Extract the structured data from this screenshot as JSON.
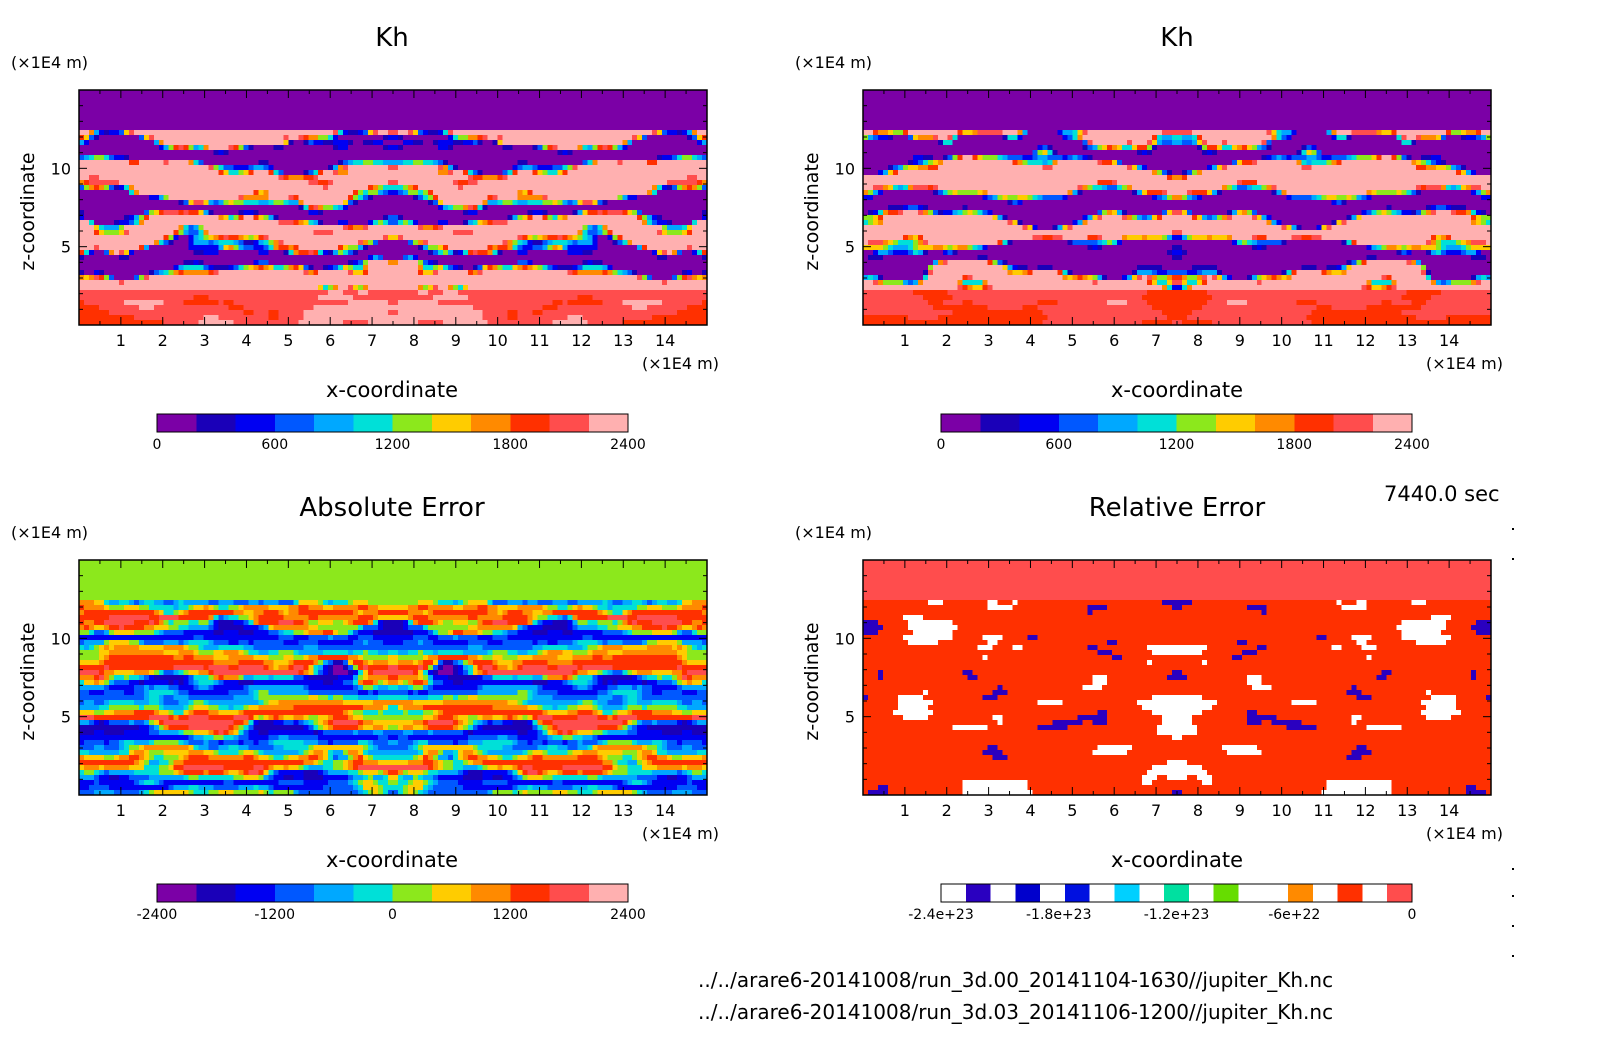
{
  "colors": {
    "kh_levels": [
      "#7b00a6",
      "#1a00b8",
      "#0000f2",
      "#0058ff",
      "#00a8ff",
      "#00e0d8",
      "#8ce81c",
      "#ffcc00",
      "#ff8a00",
      "#ff3000",
      "#ff4d4d",
      "#ffb0b0"
    ],
    "abs_levels": [
      "#7b00a6",
      "#1a00b8",
      "#0000f2",
      "#0058ff",
      "#00a8ff",
      "#00e0d8",
      "#8ce81c",
      "#ffcc00",
      "#ff8a00",
      "#ff3000",
      "#ff4d4d",
      "#ffb0b0"
    ],
    "rel_levels": [
      "#ffffff",
      "#2a00c0",
      "#ffffff",
      "#0000cc",
      "#ffffff",
      "#0010e0",
      "#ffffff",
      "#00d0ff",
      "#ffffff",
      "#00e0a0",
      "#ffffff",
      "#66dd00",
      "#ffffff",
      "#ffffff",
      "#ff8a00",
      "#ffffff",
      "#ff3000",
      "#ffffff",
      "#ff4d4d"
    ]
  },
  "footer": {
    "time_label": "7440.0 sec",
    "file_1": "../../arare6-20141008/run_3d.00_20141104-1630//jupiter_Kh.nc",
    "file_2": "../../arare6-20141008/run_3d.03_20141106-1200//jupiter_Kh.nc"
  },
  "chart_data": [
    {
      "type": "heatmap",
      "title": "Kh",
      "xlabel": "x-coordinate",
      "ylabel": "z-coordinate",
      "x_unit": "(×1E4 m)",
      "y_unit": "(×1E4 m)",
      "x_ticks": [
        "1",
        "2",
        "3",
        "4",
        "5",
        "6",
        "7",
        "8",
        "9",
        "10",
        "11",
        "12",
        "13",
        "14"
      ],
      "y_ticks": [
        "5",
        "10"
      ],
      "xlim": [
        0,
        15
      ],
      "ylim": [
        0,
        15
      ],
      "colorbar": {
        "min": 0,
        "max": 2400,
        "step": 200,
        "labels": [
          "0",
          "600",
          "1200",
          "1800",
          "2400"
        ]
      }
    },
    {
      "type": "heatmap",
      "title": "Kh",
      "xlabel": "x-coordinate",
      "ylabel": "z-coordinate",
      "x_unit": "(×1E4 m)",
      "y_unit": "(×1E4 m)",
      "x_ticks": [
        "1",
        "2",
        "3",
        "4",
        "5",
        "6",
        "7",
        "8",
        "9",
        "10",
        "11",
        "12",
        "13",
        "14"
      ],
      "y_ticks": [
        "5",
        "10"
      ],
      "xlim": [
        0,
        15
      ],
      "ylim": [
        0,
        15
      ],
      "colorbar": {
        "min": 0,
        "max": 2400,
        "step": 200,
        "labels": [
          "0",
          "600",
          "1200",
          "1800",
          "2400"
        ]
      }
    },
    {
      "type": "heatmap",
      "title": "Absolute Error",
      "xlabel": "x-coordinate",
      "ylabel": "z-coordinate",
      "x_unit": "(×1E4 m)",
      "y_unit": "(×1E4 m)",
      "x_ticks": [
        "1",
        "2",
        "3",
        "4",
        "5",
        "6",
        "7",
        "8",
        "9",
        "10",
        "11",
        "12",
        "13",
        "14"
      ],
      "y_ticks": [
        "5",
        "10"
      ],
      "xlim": [
        0,
        15
      ],
      "ylim": [
        0,
        15
      ],
      "colorbar": {
        "min": -2400,
        "max": 2400,
        "step": 400,
        "labels": [
          "-2400",
          "-1200",
          "0",
          "1200",
          "2400"
        ]
      }
    },
    {
      "type": "heatmap",
      "title": "Relative Error",
      "xlabel": "x-coordinate",
      "ylabel": "z-coordinate",
      "x_unit": "(×1E4 m)",
      "y_unit": "(×1E4 m)",
      "x_ticks": [
        "1",
        "2",
        "3",
        "4",
        "5",
        "6",
        "7",
        "8",
        "9",
        "10",
        "11",
        "12",
        "13",
        "14"
      ],
      "y_ticks": [
        "5",
        "10"
      ],
      "xlim": [
        0,
        15
      ],
      "ylim": [
        0,
        15
      ],
      "colorbar": {
        "min": -2.4e+23,
        "max": 0,
        "labels": [
          "-2.4e+23",
          "-1.8e+23",
          "-1.2e+23",
          "-6e+22",
          "0"
        ]
      }
    }
  ]
}
